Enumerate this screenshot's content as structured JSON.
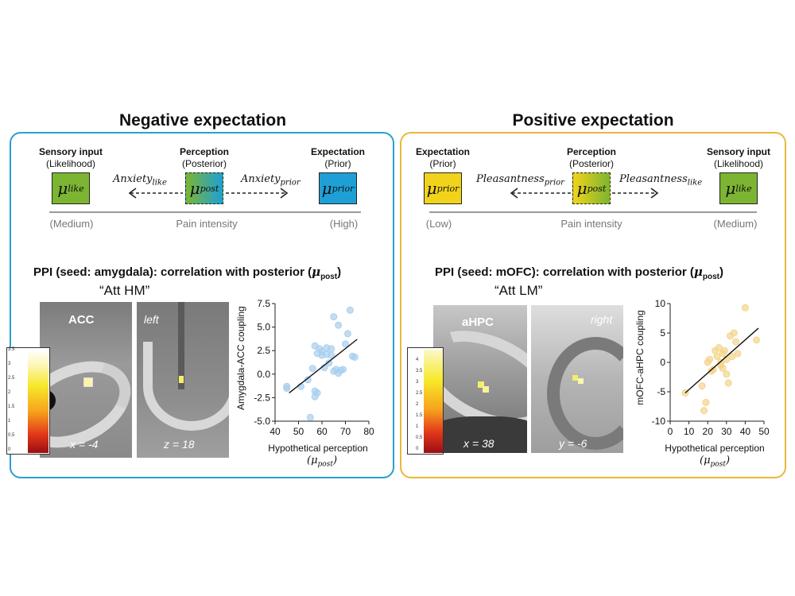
{
  "left": {
    "title": "Negative expectation",
    "border_color": "#2a9fd0",
    "box_left": {
      "head": "Sensory input",
      "sub": "(Likelihood)",
      "mu": "μ",
      "mu_sub": "like",
      "color": "#7cb531",
      "scale": "(Medium)"
    },
    "box_mid": {
      "head": "Perception",
      "sub": "(Posterior)",
      "mu": "μ",
      "mu_sub": "post",
      "scale": "Pain intensity"
    },
    "box_right": {
      "head": "Expectation",
      "sub": "(Prior)",
      "mu": "μ",
      "mu_sub": "prior",
      "color": "#1ea0d6",
      "scale": "(High)"
    },
    "arrow_left": {
      "text": "Anxiety",
      "sub": "like"
    },
    "arrow_right": {
      "text": "Anxiety",
      "sub": "prior"
    },
    "ppi_text": "PPI (seed: amygdala): correlation with posterior (",
    "ppi_mu": "μ",
    "ppi_sub": "post",
    "ppi_close": ")",
    "att": "“Att HM”",
    "brain1_label": "ACC",
    "brain1_coord": "x = -4",
    "brain2_label": "left",
    "brain2_coord": "z = 18",
    "cbar_ticks": [
      "3.5",
      "3",
      "2.5",
      "2",
      "1.5",
      "1",
      "0.5",
      "0"
    ],
    "plot": {
      "ylabel": "Amygdala-ACC coupling",
      "xlabel": "Hypothetical perception",
      "mu": "μ",
      "mu_sub": "post"
    }
  },
  "right": {
    "title": "Positive expectation",
    "border_color": "#e9b83c",
    "box_left": {
      "head": "Expectation",
      "sub": "(Prior)",
      "mu": "μ",
      "mu_sub": "prior",
      "color": "#f2d31b",
      "scale": "(Low)"
    },
    "box_mid": {
      "head": "Perception",
      "sub": "(Posterior)",
      "mu": "μ",
      "mu_sub": "post",
      "scale": "Pain intensity"
    },
    "box_right": {
      "head": "Sensory input",
      "sub": "(Likelihood)",
      "mu": "μ",
      "mu_sub": "like",
      "color": "#7cb531",
      "scale": "(Medium)"
    },
    "arrow_left": {
      "text": "Pleasantness",
      "sub": "prior"
    },
    "arrow_right": {
      "text": "Pleasantness",
      "sub": "like"
    },
    "ppi_text": "PPI (seed: mOFC): correlation with posterior (",
    "ppi_mu": "μ",
    "ppi_sub": "post",
    "ppi_close": ")",
    "att": "“Att LM”",
    "brain1_label": "aHPC",
    "brain1_coord": "x = 38",
    "brain2_label": "right",
    "brain2_coord": "y = -6",
    "cbar_ticks": [
      "4",
      "3.5",
      "3",
      "2.5",
      "2",
      "1.5",
      "1",
      "0.5",
      "0"
    ],
    "plot": {
      "ylabel": "mOFC-aHPC coupling",
      "xlabel": "Hypothetical perception",
      "mu": "μ",
      "mu_sub": "post"
    }
  },
  "chart_data": [
    {
      "type": "scatter",
      "title": "",
      "xlabel": "Hypothetical perception (μpost)",
      "ylabel": "Amygdala-ACC coupling",
      "xlim": [
        40,
        80
      ],
      "ylim": [
        -5.0,
        7.5
      ],
      "xticks": [
        40,
        50,
        60,
        70,
        80
      ],
      "yticks": [
        -5.0,
        -2.5,
        0.0,
        2.5,
        5.0,
        7.5
      ],
      "ytick_labels": [
        "-5.0",
        "-2.5",
        "0.0",
        "2.5",
        "5.0",
        "7.5"
      ],
      "point_color": "#a9cfee",
      "fit_line": {
        "x": [
          46,
          75
        ],
        "y": [
          -2.0,
          3.7
        ]
      },
      "x": [
        45,
        45,
        51,
        54,
        55,
        56,
        57,
        57,
        57,
        58,
        58,
        59,
        60,
        60,
        61,
        62,
        62,
        63,
        64,
        64,
        65,
        65,
        66,
        67,
        67,
        68,
        69,
        70,
        71,
        72,
        73,
        74
      ],
      "y": [
        -1.3,
        -1.5,
        -1.3,
        -0.6,
        -4.6,
        0.6,
        3.0,
        -1.8,
        -2.4,
        -2.0,
        2.2,
        2.7,
        2.0,
        2.4,
        0.7,
        2.1,
        2.8,
        1.2,
        2.7,
        2.0,
        6.1,
        0.3,
        0.5,
        5.2,
        0.1,
        0.4,
        0.5,
        3.2,
        4.3,
        6.8,
        1.9,
        1.8
      ]
    },
    {
      "type": "scatter",
      "title": "",
      "xlabel": "Hypothetical perception (μpost)",
      "ylabel": "mOFC-aHPC coupling",
      "xlim": [
        0,
        50
      ],
      "ylim": [
        -10,
        10
      ],
      "xticks": [
        0,
        10,
        20,
        30,
        40,
        50
      ],
      "yticks": [
        -10,
        -5,
        0,
        5,
        10
      ],
      "ytick_labels": [
        "-10",
        "-5",
        "0",
        "5",
        "10"
      ],
      "point_color": "#f3d48a",
      "fit_line": {
        "x": [
          8,
          47
        ],
        "y": [
          -5.2,
          5.8
        ]
      },
      "x": [
        8,
        17,
        18,
        19,
        20,
        21,
        22,
        23,
        24,
        25,
        26,
        27,
        27,
        28,
        28,
        29,
        30,
        30,
        31,
        32,
        33,
        34,
        35,
        36,
        40,
        46
      ],
      "y": [
        -5.2,
        -4.0,
        -8.2,
        -6.8,
        0.0,
        0.5,
        -1.5,
        -1.2,
        2.0,
        1.0,
        2.5,
        0.0,
        -0.5,
        1.5,
        -1.0,
        2.0,
        0.5,
        -2.0,
        -3.5,
        4.5,
        1.0,
        5.0,
        3.5,
        1.5,
        9.3,
        3.8
      ]
    }
  ]
}
